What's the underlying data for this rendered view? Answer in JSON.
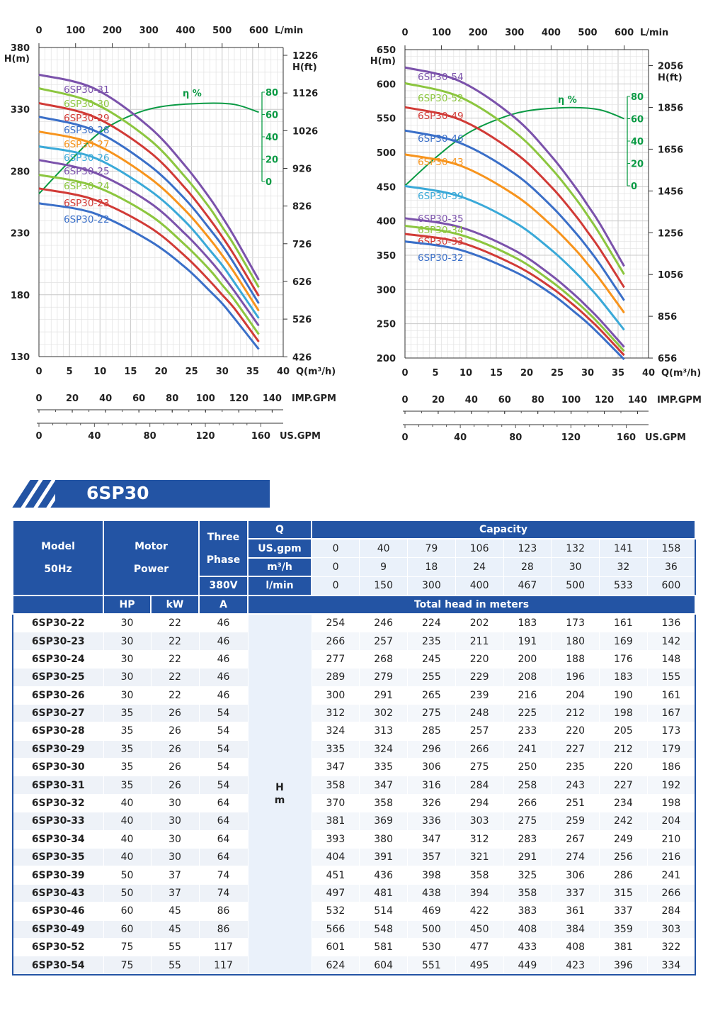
{
  "chart_data": [
    {
      "type": "line",
      "xlabel": "Q(m³/h)",
      "ylabel_left": "H(m)",
      "ylabel_right": "H(ft)",
      "top_axis_label": "L/min",
      "xlim": [
        0,
        40
      ],
      "ylim": [
        130,
        380
      ],
      "x_ticks": [
        0,
        5,
        10,
        15,
        20,
        25,
        30,
        35,
        40
      ],
      "y_ticks": [
        380,
        330,
        280,
        230,
        180,
        130
      ],
      "ft_ticks": [
        1226,
        1126,
        1026,
        926,
        826,
        726,
        626,
        526,
        426
      ],
      "lmin_ticks": [
        0,
        100,
        200,
        300,
        400,
        500,
        600
      ],
      "imp_label": "IMP.GPM",
      "imp_ticks": [
        0,
        20,
        40,
        60,
        80,
        100,
        120,
        140
      ],
      "us_label": "US.GPM",
      "us_ticks": [
        0,
        40,
        80,
        120,
        160
      ],
      "grid": true,
      "efficiency": {
        "label": "η %",
        "ticks": [
          80,
          60,
          40,
          20,
          0
        ],
        "color": "#0a9a44",
        "x": [
          0,
          5,
          10,
          15,
          20,
          27,
          32,
          36
        ],
        "values": [
          -11,
          18,
          44,
          59,
          67,
          70,
          69,
          62
        ]
      },
      "x": [
        0,
        9,
        18,
        24,
        28,
        30,
        32,
        36
      ],
      "series": [
        {
          "name": "6SP30-31",
          "color": "#7b52ab",
          "values": [
            358,
            347,
            316,
            284,
            258,
            243,
            227,
            192
          ]
        },
        {
          "name": "6SP30-30",
          "color": "#8cc63f",
          "values": [
            347,
            335,
            306,
            275,
            250,
            235,
            220,
            186
          ]
        },
        {
          "name": "6SP30-29",
          "color": "#d13a36",
          "values": [
            335,
            324,
            296,
            266,
            241,
            227,
            212,
            179
          ]
        },
        {
          "name": "6SP30-28",
          "color": "#3a6fc8",
          "values": [
            324,
            313,
            285,
            257,
            233,
            220,
            205,
            173
          ]
        },
        {
          "name": "6SP30-27",
          "color": "#f7941d",
          "values": [
            312,
            302,
            275,
            248,
            225,
            212,
            198,
            167
          ]
        },
        {
          "name": "6SP30-26",
          "color": "#3aa9d8",
          "values": [
            300,
            291,
            265,
            239,
            216,
            204,
            190,
            161
          ]
        },
        {
          "name": "6SP30-25",
          "color": "#7b52ab",
          "values": [
            289,
            279,
            255,
            229,
            208,
            196,
            183,
            155
          ]
        },
        {
          "name": "6SP30-24",
          "color": "#8cc63f",
          "values": [
            277,
            268,
            245,
            220,
            200,
            188,
            176,
            148
          ]
        },
        {
          "name": "6SP30-23",
          "color": "#d13a36",
          "values": [
            266,
            257,
            235,
            211,
            191,
            180,
            169,
            142
          ]
        },
        {
          "name": "6SP30-22",
          "color": "#3a6fc8",
          "values": [
            254,
            246,
            224,
            202,
            183,
            173,
            161,
            136
          ]
        }
      ]
    },
    {
      "type": "line",
      "xlabel": "Q(m³/h)",
      "ylabel_left": "H(m)",
      "ylabel_right": "H(ft)",
      "top_axis_label": "L/min",
      "xlim": [
        0,
        40
      ],
      "ylim": [
        200,
        650
      ],
      "x_ticks": [
        0,
        5,
        10,
        15,
        20,
        25,
        30,
        35,
        40
      ],
      "y_ticks": [
        650,
        600,
        550,
        500,
        450,
        400,
        350,
        300,
        250,
        200
      ],
      "ft_ticks": [
        2056,
        1856,
        1656,
        1456,
        1256,
        1056,
        856,
        656
      ],
      "lmin_ticks": [
        0,
        100,
        200,
        300,
        400,
        500,
        600
      ],
      "imp_label": "IMP.GPM",
      "imp_ticks": [
        0,
        20,
        40,
        60,
        80,
        100,
        120,
        140
      ],
      "us_label": "US.GPM",
      "us_ticks": [
        0,
        40,
        80,
        120,
        160
      ],
      "grid": true,
      "efficiency": {
        "label": "η %",
        "ticks": [
          80,
          60,
          40,
          20,
          0
        ],
        "color": "#0a9a44",
        "x": [
          0,
          5,
          10,
          15,
          20,
          27,
          32,
          36
        ],
        "values": [
          0,
          25,
          46,
          59,
          67,
          70,
          68,
          60
        ]
      },
      "x": [
        0,
        9,
        18,
        24,
        28,
        30,
        32,
        36
      ],
      "series": [
        {
          "name": "6SP30-54",
          "color": "#7b52ab",
          "values": [
            624,
            604,
            551,
            495,
            449,
            423,
            396,
            334
          ]
        },
        {
          "name": "6SP30-52",
          "color": "#8cc63f",
          "values": [
            601,
            581,
            530,
            477,
            433,
            408,
            381,
            322
          ]
        },
        {
          "name": "6SP30-49",
          "color": "#d13a36",
          "values": [
            566,
            548,
            500,
            450,
            408,
            384,
            359,
            303
          ]
        },
        {
          "name": "6SP30-46",
          "color": "#3a6fc8",
          "values": [
            532,
            514,
            469,
            422,
            383,
            361,
            337,
            284
          ]
        },
        {
          "name": "6SP30-43",
          "color": "#f7941d",
          "values": [
            497,
            481,
            438,
            394,
            358,
            337,
            315,
            266
          ]
        },
        {
          "name": "6SP30-39",
          "color": "#3aa9d8",
          "values": [
            451,
            436,
            398,
            358,
            325,
            306,
            286,
            241
          ]
        },
        {
          "name": "6SP30-35",
          "color": "#7b52ab",
          "values": [
            404,
            391,
            357,
            321,
            291,
            274,
            256,
            216
          ]
        },
        {
          "name": "6SP30-34",
          "color": "#8cc63f",
          "values": [
            393,
            380,
            347,
            312,
            283,
            267,
            249,
            210
          ]
        },
        {
          "name": "6SP30-33",
          "color": "#d13a36",
          "values": [
            381,
            369,
            336,
            303,
            275,
            259,
            242,
            204
          ]
        },
        {
          "name": "6SP30-32",
          "color": "#3a6fc8",
          "values": [
            370,
            358,
            326,
            294,
            266,
            251,
            234,
            198
          ]
        }
      ]
    }
  ],
  "banner": {
    "title": "6SP30",
    "color": "#2354a4"
  },
  "table": {
    "model_header": "Model",
    "model_sub": "50Hz",
    "motor_header": "Motor",
    "motor_sub": "Power",
    "phase_header": "Three",
    "phase_sub": "Phase",
    "voltage": "380V",
    "q_label": "Q",
    "capacity_label": "Capacity",
    "units": [
      {
        "label": "US.gpm",
        "values": [
          "0",
          "40",
          "79",
          "106",
          "123",
          "132",
          "141",
          "158"
        ]
      },
      {
        "label": "m³/h",
        "values": [
          "0",
          "9",
          "18",
          "24",
          "28",
          "30",
          "32",
          "36"
        ]
      },
      {
        "label": "l/min",
        "values": [
          "0",
          "150",
          "300",
          "400",
          "467",
          "500",
          "533",
          "600"
        ]
      }
    ],
    "hp_label": "HP",
    "kw_label": "kW",
    "a_label": "A",
    "total_head_label": "Total head in meters",
    "h_label": "H",
    "m_label": "m",
    "rows": [
      {
        "model": "6SP30-22",
        "hp": "30",
        "kw": "22",
        "a": "46",
        "heads": [
          "254",
          "246",
          "224",
          "202",
          "183",
          "173",
          "161",
          "136"
        ]
      },
      {
        "model": "6SP30-23",
        "hp": "30",
        "kw": "22",
        "a": "46",
        "heads": [
          "266",
          "257",
          "235",
          "211",
          "191",
          "180",
          "169",
          "142"
        ]
      },
      {
        "model": "6SP30-24",
        "hp": "30",
        "kw": "22",
        "a": "46",
        "heads": [
          "277",
          "268",
          "245",
          "220",
          "200",
          "188",
          "176",
          "148"
        ]
      },
      {
        "model": "6SP30-25",
        "hp": "30",
        "kw": "22",
        "a": "46",
        "heads": [
          "289",
          "279",
          "255",
          "229",
          "208",
          "196",
          "183",
          "155"
        ]
      },
      {
        "model": "6SP30-26",
        "hp": "30",
        "kw": "22",
        "a": "46",
        "heads": [
          "300",
          "291",
          "265",
          "239",
          "216",
          "204",
          "190",
          "161"
        ]
      },
      {
        "model": "6SP30-27",
        "hp": "35",
        "kw": "26",
        "a": "54",
        "heads": [
          "312",
          "302",
          "275",
          "248",
          "225",
          "212",
          "198",
          "167"
        ]
      },
      {
        "model": "6SP30-28",
        "hp": "35",
        "kw": "26",
        "a": "54",
        "heads": [
          "324",
          "313",
          "285",
          "257",
          "233",
          "220",
          "205",
          "173"
        ]
      },
      {
        "model": "6SP30-29",
        "hp": "35",
        "kw": "26",
        "a": "54",
        "heads": [
          "335",
          "324",
          "296",
          "266",
          "241",
          "227",
          "212",
          "179"
        ]
      },
      {
        "model": "6SP30-30",
        "hp": "35",
        "kw": "26",
        "a": "54",
        "heads": [
          "347",
          "335",
          "306",
          "275",
          "250",
          "235",
          "220",
          "186"
        ]
      },
      {
        "model": "6SP30-31",
        "hp": "35",
        "kw": "26",
        "a": "54",
        "heads": [
          "358",
          "347",
          "316",
          "284",
          "258",
          "243",
          "227",
          "192"
        ]
      },
      {
        "model": "6SP30-32",
        "hp": "40",
        "kw": "30",
        "a": "64",
        "heads": [
          "370",
          "358",
          "326",
          "294",
          "266",
          "251",
          "234",
          "198"
        ]
      },
      {
        "model": "6SP30-33",
        "hp": "40",
        "kw": "30",
        "a": "64",
        "heads": [
          "381",
          "369",
          "336",
          "303",
          "275",
          "259",
          "242",
          "204"
        ]
      },
      {
        "model": "6SP30-34",
        "hp": "40",
        "kw": "30",
        "a": "64",
        "heads": [
          "393",
          "380",
          "347",
          "312",
          "283",
          "267",
          "249",
          "210"
        ]
      },
      {
        "model": "6SP30-35",
        "hp": "40",
        "kw": "30",
        "a": "64",
        "heads": [
          "404",
          "391",
          "357",
          "321",
          "291",
          "274",
          "256",
          "216"
        ]
      },
      {
        "model": "6SP30-39",
        "hp": "50",
        "kw": "37",
        "a": "74",
        "heads": [
          "451",
          "436",
          "398",
          "358",
          "325",
          "306",
          "286",
          "241"
        ]
      },
      {
        "model": "6SP30-43",
        "hp": "50",
        "kw": "37",
        "a": "74",
        "heads": [
          "497",
          "481",
          "438",
          "394",
          "358",
          "337",
          "315",
          "266"
        ]
      },
      {
        "model": "6SP30-46",
        "hp": "60",
        "kw": "45",
        "a": "86",
        "heads": [
          "532",
          "514",
          "469",
          "422",
          "383",
          "361",
          "337",
          "284"
        ]
      },
      {
        "model": "6SP30-49",
        "hp": "60",
        "kw": "45",
        "a": "86",
        "heads": [
          "566",
          "548",
          "500",
          "450",
          "408",
          "384",
          "359",
          "303"
        ]
      },
      {
        "model": "6SP30-52",
        "hp": "75",
        "kw": "55",
        "a": "117",
        "heads": [
          "601",
          "581",
          "530",
          "477",
          "433",
          "408",
          "381",
          "322"
        ]
      },
      {
        "model": "6SP30-54",
        "hp": "75",
        "kw": "55",
        "a": "117",
        "heads": [
          "624",
          "604",
          "551",
          "495",
          "449",
          "423",
          "396",
          "334"
        ]
      }
    ]
  }
}
